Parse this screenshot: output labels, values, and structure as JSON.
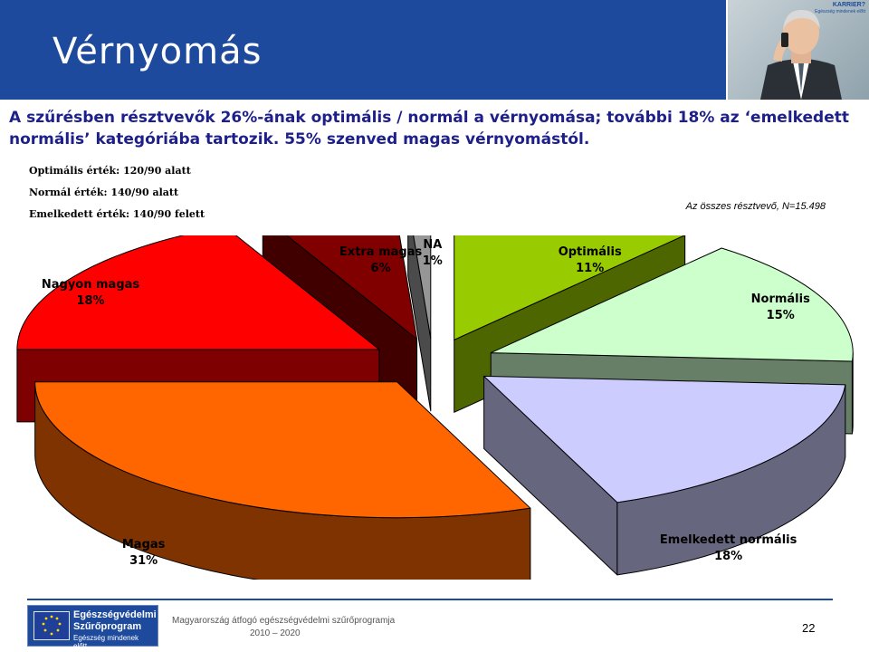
{
  "slide": {
    "title": "Vérnyomás",
    "headline": "A szűrésben résztvevők 26%-ának optimális / normál a vérnyomása; további 18% az ‘emelkedett normális’ kategóriába tartozik. 55% szenved magas vérnyomástól.",
    "definitions": [
      "Optimális érték: 120/90 alatt",
      "Normál érték: 140/90 alatt",
      "Emelkedett érték: 140/90 felett"
    ],
    "note": "Az összes résztvevő, N=15.498",
    "photo_tag": "KARRIER?",
    "photo_tag_sub": "Egészség mindenek előtt"
  },
  "chart_data": {
    "type": "pie",
    "title": "",
    "n_label": "Az összes résztvevő, N=15.498",
    "slices": [
      {
        "label": "Optimális",
        "value": 11,
        "value_label": "11%",
        "color": "#99cc00",
        "side_color": "#4d6600"
      },
      {
        "label": "Normális",
        "value": 15,
        "value_label": "15%",
        "color": "#ccffcc",
        "side_color": "#667f66"
      },
      {
        "label": "Emelkedett normális",
        "value": 18,
        "value_label": "18%",
        "color": "#ccccff",
        "side_color": "#66667f"
      },
      {
        "label": "Magas",
        "value": 31,
        "value_label": "31%",
        "color": "#ff6600",
        "side_color": "#7f3300"
      },
      {
        "label": "Nagyon magas",
        "value": 18,
        "value_label": "18%",
        "color": "#ff0000",
        "side_color": "#7f0000"
      },
      {
        "label": "Extra magas",
        "value": 6,
        "value_label": "6%",
        "color": "#800000",
        "side_color": "#400000"
      },
      {
        "label": "NA",
        "value": 1,
        "value_label": "1%",
        "color": "#969696",
        "side_color": "#4b4b4b"
      }
    ]
  },
  "footer": {
    "logo_line1": "Egészségvédelmi",
    "logo_line2": "Szűrőprogram",
    "logo_line3": "Egészség mindenek előtt...",
    "program": "Magyarország átfogó egészségvédelmi szűrőprogramja",
    "years": "2010 – 2020",
    "page_number": "22"
  }
}
